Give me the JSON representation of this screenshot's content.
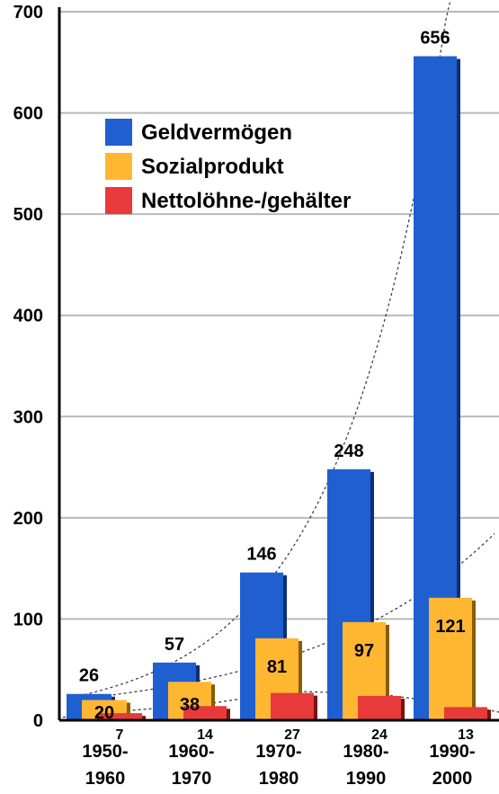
{
  "chart_data": {
    "type": "bar",
    "categories": [
      [
        "1950-",
        "1960"
      ],
      [
        "1960-",
        "1970"
      ],
      [
        "1970-",
        "1980"
      ],
      [
        "1980-",
        "1990"
      ],
      [
        "1990-",
        "2000"
      ]
    ],
    "series": [
      {
        "name": "Geldvermögen",
        "color": "#1f5fd0",
        "values": [
          26,
          57,
          146,
          248,
          656
        ]
      },
      {
        "name": "Sozialprodukt",
        "color": "#ffb732",
        "values": [
          20,
          38,
          81,
          97,
          121
        ]
      },
      {
        "name": "Nettolöhne-/gehälter",
        "color": "#e83a3a",
        "values": [
          7,
          14,
          27,
          24,
          13
        ]
      }
    ],
    "ylim": [
      0,
      700
    ],
    "yticks": [
      0,
      100,
      200,
      300,
      400,
      500,
      600,
      700
    ],
    "grid": true,
    "legend_position": "top-left",
    "trend_lines": "dashed",
    "title": "",
    "xlabel": "",
    "ylabel": ""
  }
}
